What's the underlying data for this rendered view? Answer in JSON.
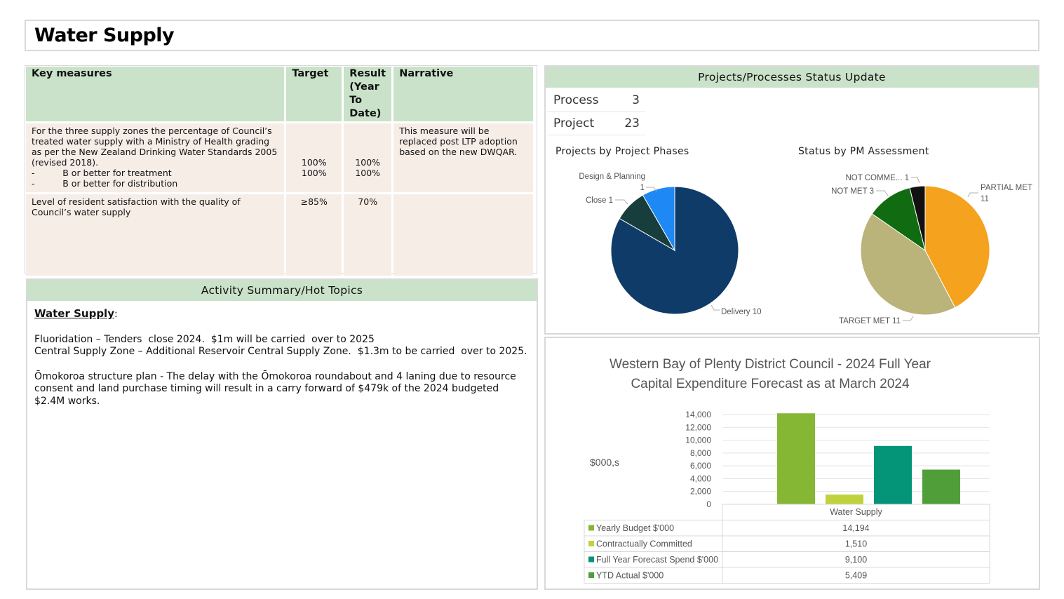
{
  "page_title": "Water Supply",
  "key_measures": {
    "headers": [
      "Key measures",
      "Target",
      "Result (Year To Date)",
      "Narrative"
    ],
    "rows": [
      {
        "measure_lines": [
          "For the three supply zones the percentage of Council’s",
          "treated water supply with a Ministry of Health grading",
          "as per the New Zealand Drinking Water Standards 2005",
          "(revised 2018).",
          "-          B or better for treatment",
          "-          B or better for distribution"
        ],
        "target_lines": [
          "100%",
          "100%"
        ],
        "result_lines": [
          "100%",
          "100%"
        ],
        "narrative_lines": [
          "This measure will be",
          "replaced post LTP adoption",
          "based on the new DWQAR."
        ]
      },
      {
        "measure_lines": [
          "Level of resident satisfaction with the quality of",
          "Council’s water supply"
        ],
        "target_lines": [
          "≥85%"
        ],
        "result_lines": [
          "70%"
        ],
        "narrative_lines": []
      }
    ]
  },
  "activity_summary": {
    "heading": "Activity Summary/Hot Topics",
    "subheading": "Water Supply",
    "subheading_suffix": ":",
    "lines_1": [
      "Fluoridation – Tenders  close 2024.  $1m will be carried  over to 2025",
      "Central Supply Zone – Additional Reservoir Central Supply Zone.  $1.3m to be carried  over to 2025."
    ],
    "lines_2": [
      "Ōmokoroa structure plan - The delay with the Ōmokoroa roundabout and 4 laning due to resource",
      "consent and land purchase timing will result in a carry forward of $479k of the 2024 budgeted",
      "$2.4M works."
    ]
  },
  "status": {
    "heading": "Projects/Processes Status Update",
    "kpis": [
      {
        "label": "Process",
        "value": "3"
      },
      {
        "label": "Project",
        "value": "23"
      }
    ]
  },
  "chart_data": [
    {
      "type": "pie",
      "title": "Projects by Project Phases",
      "slices": [
        {
          "label": "Delivery",
          "value": 10,
          "color": "#0f3b69"
        },
        {
          "label": "Close",
          "value": 1,
          "color": "#173d3d"
        },
        {
          "label": "Design & Planning",
          "value": 1,
          "color": "#1e88f5"
        }
      ],
      "data_labels": [
        {
          "name": "Delivery",
          "text": "Delivery 10"
        },
        {
          "name": "Close",
          "text": "Close 1"
        },
        {
          "name": "Design & Planning",
          "text": "Design & Planning"
        },
        {
          "name": "Design & Planning value",
          "text": "1"
        }
      ]
    },
    {
      "type": "pie",
      "title": "Status by PM Assessment",
      "slices": [
        {
          "label": "PARTIAL MET",
          "value": 11,
          "color": "#f5a21f"
        },
        {
          "label": "TARGET MET",
          "value": 11,
          "color": "#bab37a"
        },
        {
          "label": "NOT MET",
          "value": 3,
          "color": "#116b11"
        },
        {
          "label": "NOT COMME...",
          "value": 1,
          "color": "#111111"
        }
      ],
      "data_labels": [
        {
          "name": "PARTIAL MET",
          "text": "PARTIAL MET"
        },
        {
          "name": "PARTIAL MET value",
          "text": "11"
        },
        {
          "name": "TARGET MET",
          "text": "TARGET MET 11"
        },
        {
          "name": "NOT MET",
          "text": "NOT MET 3"
        },
        {
          "name": "NOT COMME...",
          "text": "NOT COMME... 1"
        }
      ]
    },
    {
      "type": "bar",
      "title_lines": [
        "Western Bay of Plenty District Council - 2024 Full Year",
        "Capital Expenditure Forecast as at March 2024"
      ],
      "ylabel": "$000,s",
      "categories": [
        "Water Supply"
      ],
      "ylim": [
        0,
        14000
      ],
      "yticks": [
        "0",
        "2,000",
        "4,000",
        "6,000",
        "8,000",
        "10,000",
        "12,000",
        "14,000"
      ],
      "grid": true,
      "legend": "data-table",
      "series": [
        {
          "name": "Yearly Budget $'000",
          "values": [
            14194
          ],
          "label": "14,194",
          "color": "#86b734"
        },
        {
          "name": "Contractually Committed",
          "values": [
            1510
          ],
          "label": "1,510",
          "color": "#bfd23c"
        },
        {
          "name": "Full Year Forecast Spend $'000",
          "values": [
            9100
          ],
          "label": "9,100",
          "color": "#049477"
        },
        {
          "name": "YTD Actual $'000",
          "values": [
            5409
          ],
          "label": "5,409",
          "color": "#4f9e3a"
        }
      ]
    }
  ]
}
